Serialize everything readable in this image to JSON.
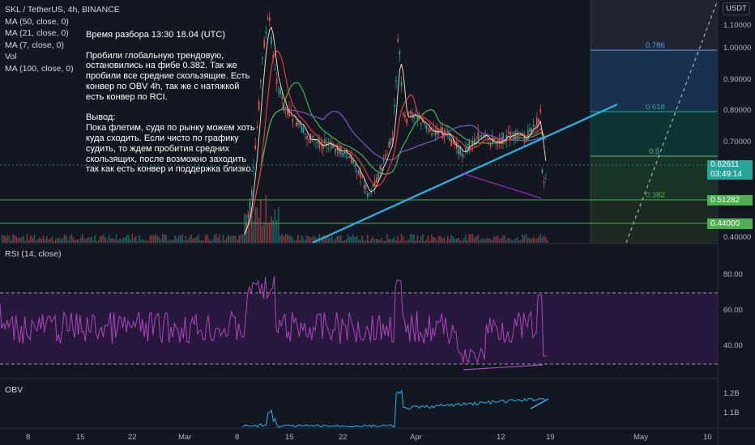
{
  "legend": {
    "symbol_line": "SKL / TetherUS, 4h, BINANCE",
    "items": [
      "MA (50, close, 0)",
      "MA (21, close, 0)",
      "MA (7, close, 0)",
      "Vol",
      "MA (100, close, 0)"
    ]
  },
  "note": {
    "p1": "Время разбора 13:30 18.04 (UTC)",
    "p2": "Пробили глобальную трендовую, остановились на фибе 0.382. Так же пробили все средние скользящие. Есть конвер по OBV 4h, так же с натяжкой есть конвер по RCI.",
    "p3": "Вывод:\nПока флетим, судя по рынку можем хоть куда сходить. Если чисто по графику судить, то ждем пробития средних скользящих, после возможно заходить так как есть конвер и поддержка близко."
  },
  "currency_button": "USDT",
  "price_axis": [
    "1.10000",
    "1.00000",
    "0.90000",
    "0.80000",
    "0.70000",
    "0.40000"
  ],
  "price_tags": {
    "current_price": "0.62611",
    "countdown": "03:49:14",
    "level_1": "0.51282",
    "level_2": "0.44000"
  },
  "fib_levels": [
    "0.786",
    "0.618",
    "0.5",
    "0.382"
  ],
  "rsi": {
    "title": "RSI (14, close)",
    "axis": [
      "80.00",
      "60.00",
      "40.00"
    ]
  },
  "obv": {
    "title": "OBV",
    "axis": [
      "1.2B",
      "1.1B"
    ]
  },
  "time_axis": [
    "8",
    "15",
    "22",
    "Mar",
    "8",
    "15",
    "22",
    "Apr",
    "12",
    "19",
    "May",
    "10"
  ],
  "colors": {
    "background": "#131722",
    "up": "#26a69a",
    "down": "#ef5350",
    "trendline": "#2ab4e8",
    "rsi": "#9c27b0",
    "obv": "#2ab4e8",
    "ma50": "#4caf50",
    "ma21": "#e91e63",
    "ma7": "#ffffff",
    "ma100": "#7e57c2"
  }
}
